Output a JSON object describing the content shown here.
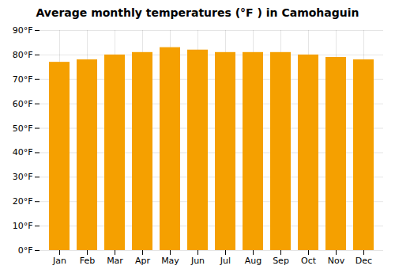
{
  "chart_data": {
    "type": "bar",
    "title": "Average monthly temperatures (°F ) in Camohaguin",
    "categories": [
      "Jan",
      "Feb",
      "Mar",
      "Apr",
      "May",
      "Jun",
      "Jul",
      "Aug",
      "Sep",
      "Oct",
      "Nov",
      "Dec"
    ],
    "values": [
      77,
      78,
      80,
      81,
      83,
      82,
      81,
      81,
      81,
      80,
      79,
      78
    ],
    "color": "#F5A000",
    "ylim": [
      0,
      90
    ],
    "yticks": [
      {
        "value": 0,
        "label": "0°F"
      },
      {
        "value": 10,
        "label": "10°F"
      },
      {
        "value": 20,
        "label": "20°F"
      },
      {
        "value": 30,
        "label": "30°F"
      },
      {
        "value": 40,
        "label": "40°F"
      },
      {
        "value": 50,
        "label": "50°F"
      },
      {
        "value": 60,
        "label": "60°F"
      },
      {
        "value": 70,
        "label": "70°F"
      },
      {
        "value": 80,
        "label": "80°F"
      },
      {
        "value": 90,
        "label": "90°F"
      }
    ],
    "grid": true
  }
}
